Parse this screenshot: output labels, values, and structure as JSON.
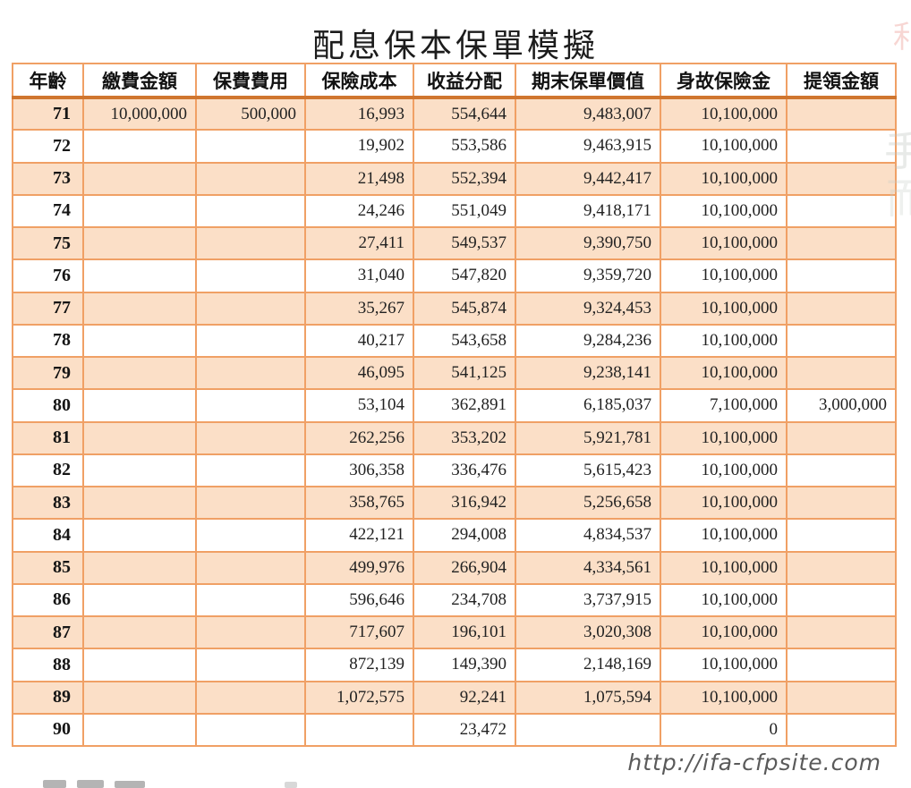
{
  "page": {
    "title": "配息保本保單模擬",
    "watermark": "http://ifa-cfpsite.com"
  },
  "table": {
    "columns": [
      "年齡",
      "繳費金額",
      "保費費用",
      "保險成本",
      "收益分配",
      "期末保單價值",
      "身故保險金",
      "提領金額"
    ],
    "rows": [
      [
        "71",
        "10,000,000",
        "500,000",
        "16,993",
        "554,644",
        "9,483,007",
        "10,100,000",
        ""
      ],
      [
        "72",
        "",
        "",
        "19,902",
        "553,586",
        "9,463,915",
        "10,100,000",
        ""
      ],
      [
        "73",
        "",
        "",
        "21,498",
        "552,394",
        "9,442,417",
        "10,100,000",
        ""
      ],
      [
        "74",
        "",
        "",
        "24,246",
        "551,049",
        "9,418,171",
        "10,100,000",
        ""
      ],
      [
        "75",
        "",
        "",
        "27,411",
        "549,537",
        "9,390,750",
        "10,100,000",
        ""
      ],
      [
        "76",
        "",
        "",
        "31,040",
        "547,820",
        "9,359,720",
        "10,100,000",
        ""
      ],
      [
        "77",
        "",
        "",
        "35,267",
        "545,874",
        "9,324,453",
        "10,100,000",
        ""
      ],
      [
        "78",
        "",
        "",
        "40,217",
        "543,658",
        "9,284,236",
        "10,100,000",
        ""
      ],
      [
        "79",
        "",
        "",
        "46,095",
        "541,125",
        "9,238,141",
        "10,100,000",
        ""
      ],
      [
        "80",
        "",
        "",
        "53,104",
        "362,891",
        "6,185,037",
        "7,100,000",
        "3,000,000"
      ],
      [
        "81",
        "",
        "",
        "262,256",
        "353,202",
        "5,921,781",
        "10,100,000",
        ""
      ],
      [
        "82",
        "",
        "",
        "306,358",
        "336,476",
        "5,615,423",
        "10,100,000",
        ""
      ],
      [
        "83",
        "",
        "",
        "358,765",
        "316,942",
        "5,256,658",
        "10,100,000",
        ""
      ],
      [
        "84",
        "",
        "",
        "422,121",
        "294,008",
        "4,834,537",
        "10,100,000",
        ""
      ],
      [
        "85",
        "",
        "",
        "499,976",
        "266,904",
        "4,334,561",
        "10,100,000",
        ""
      ],
      [
        "86",
        "",
        "",
        "596,646",
        "234,708",
        "3,737,915",
        "10,100,000",
        ""
      ],
      [
        "87",
        "",
        "",
        "717,607",
        "196,101",
        "3,020,308",
        "10,100,000",
        ""
      ],
      [
        "88",
        "",
        "",
        "872,139",
        "149,390",
        "2,148,169",
        "10,100,000",
        ""
      ],
      [
        "89",
        "",
        "",
        "1,072,575",
        "92,241",
        "1,075,594",
        "10,100,000",
        ""
      ],
      [
        "90",
        "",
        "",
        "",
        "23,472",
        "",
        "0",
        ""
      ]
    ]
  },
  "artifacts": {
    "edge_glyph_1": "手",
    "edge_glyph_2": "而",
    "edge_glyph_top": "利"
  },
  "colors": {
    "border_orange": "#F0A065",
    "header_separator": "#D0762F",
    "row_stripe_peach": "#FBDFC7",
    "text": "#222222",
    "watermark_gray": "#5A5A5A"
  }
}
